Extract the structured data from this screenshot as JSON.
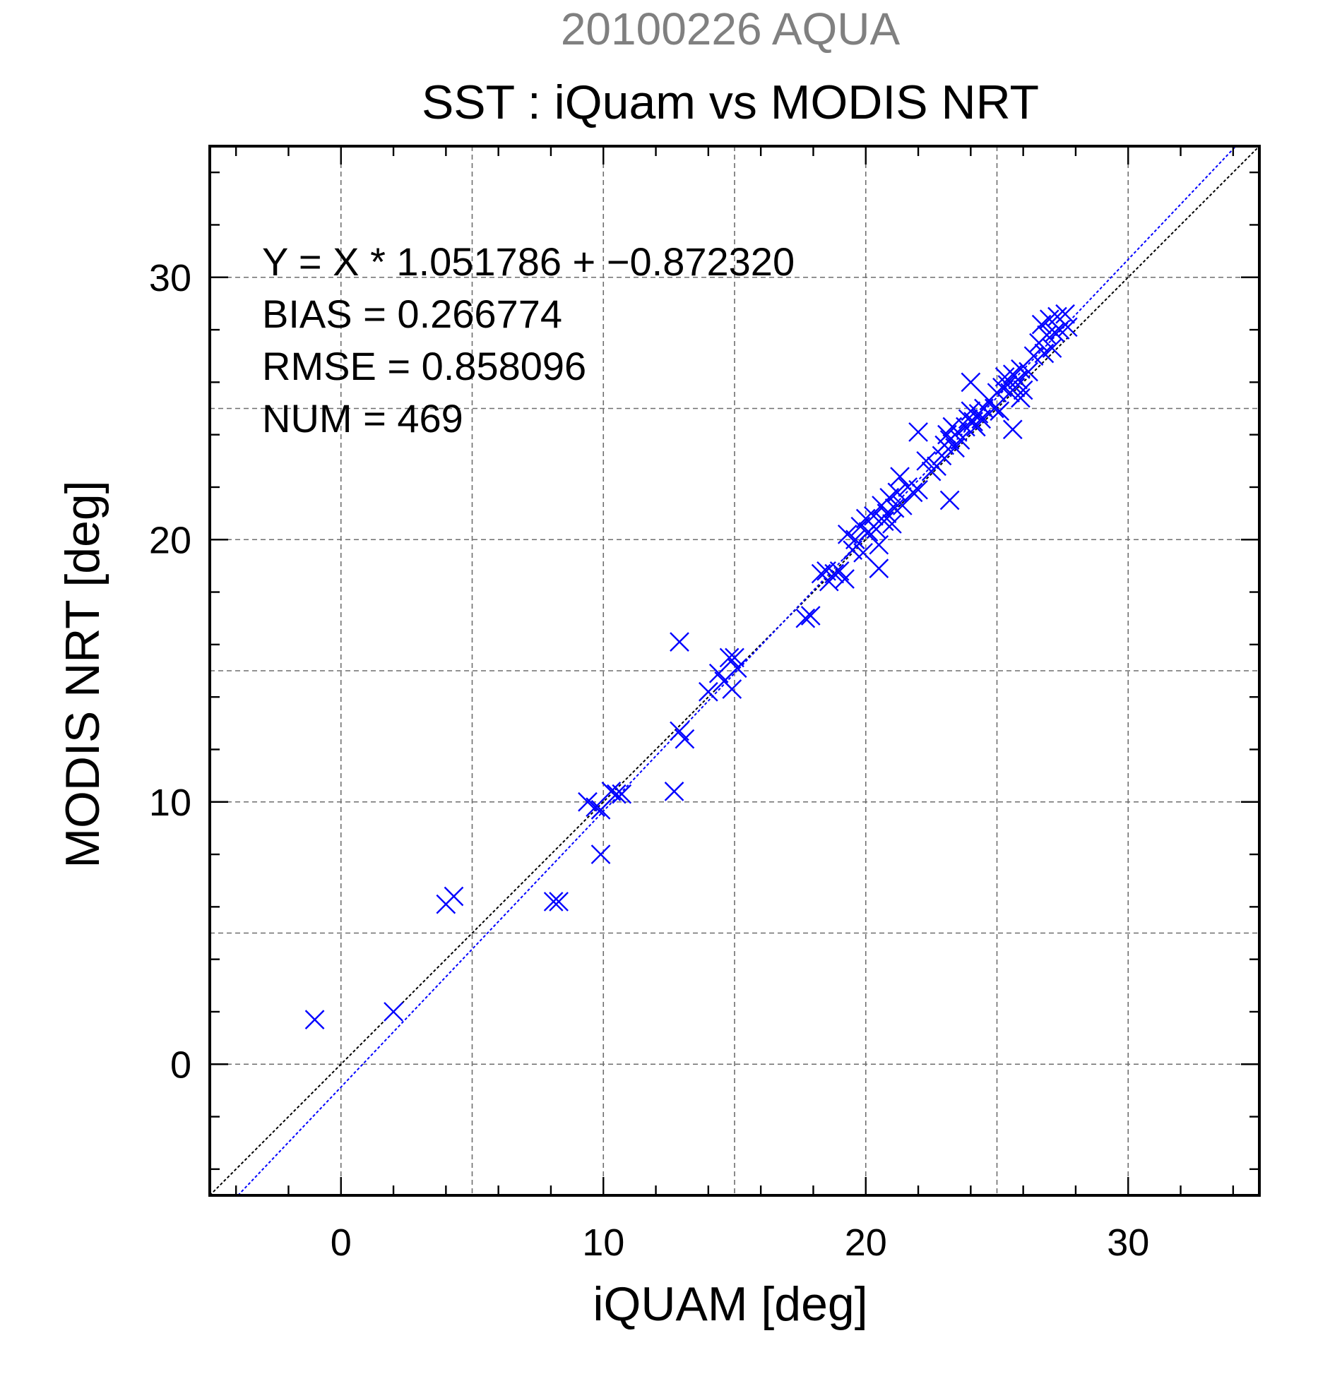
{
  "chart_data": {
    "type": "scatter",
    "subtitle": "20100226 AQUA",
    "title": "SST : iQuam vs MODIS NRT",
    "xlabel": "iQUAM [deg]",
    "ylabel": "MODIS NRT [deg]",
    "xlim": [
      -5,
      35
    ],
    "ylim": [
      -5,
      35
    ],
    "xticks": [
      0,
      10,
      20,
      30
    ],
    "yticks": [
      0,
      10,
      20,
      30
    ],
    "grid": true,
    "annotations": [
      "Y = X * 1.051786 + −0.872320",
      "BIAS = 0.266774",
      "RMSE = 0.858096",
      "NUM = 469"
    ],
    "reference_lines": [
      {
        "kind": "identity",
        "slope": 1,
        "intercept": 0,
        "color": "#000000"
      },
      {
        "kind": "regression",
        "slope": 1.051786,
        "intercept": -0.87232,
        "color": "#0000ff"
      }
    ],
    "series": [
      {
        "color": "#0000ff",
        "marker": "x",
        "points": [
          [
            -1.0,
            1.7
          ],
          [
            2.0,
            2.0
          ],
          [
            4.0,
            6.1
          ],
          [
            4.3,
            6.4
          ],
          [
            8.1,
            6.2
          ],
          [
            8.3,
            6.2
          ],
          [
            9.4,
            10.0
          ],
          [
            9.7,
            9.8
          ],
          [
            9.9,
            9.7
          ],
          [
            9.9,
            8.0
          ],
          [
            10.3,
            10.4
          ],
          [
            10.5,
            10.3
          ],
          [
            10.7,
            10.3
          ],
          [
            12.7,
            10.4
          ],
          [
            12.9,
            12.7
          ],
          [
            13.1,
            12.4
          ],
          [
            12.9,
            16.1
          ],
          [
            14.0,
            14.2
          ],
          [
            14.4,
            14.9
          ],
          [
            14.6,
            14.6
          ],
          [
            14.8,
            15.5
          ],
          [
            14.9,
            14.3
          ],
          [
            15.0,
            15.5
          ],
          [
            15.1,
            15.1
          ],
          [
            17.7,
            17.0
          ],
          [
            17.9,
            17.1
          ],
          [
            18.3,
            18.7
          ],
          [
            18.5,
            18.8
          ],
          [
            18.6,
            18.4
          ],
          [
            18.8,
            18.7
          ],
          [
            19.0,
            18.8
          ],
          [
            19.2,
            18.5
          ],
          [
            19.3,
            20.2
          ],
          [
            19.5,
            19.6
          ],
          [
            19.6,
            20.0
          ],
          [
            19.8,
            20.5
          ],
          [
            19.9,
            19.5
          ],
          [
            20.0,
            20.8
          ],
          [
            20.1,
            20.3
          ],
          [
            20.3,
            20.9
          ],
          [
            20.4,
            20.4
          ],
          [
            20.5,
            19.8
          ],
          [
            20.5,
            18.9
          ],
          [
            20.6,
            21.3
          ],
          [
            20.7,
            20.7
          ],
          [
            20.8,
            21.0
          ],
          [
            20.9,
            21.6
          ],
          [
            21.0,
            20.6
          ],
          [
            21.1,
            21.2
          ],
          [
            21.2,
            21.8
          ],
          [
            21.3,
            22.4
          ],
          [
            21.4,
            21.3
          ],
          [
            21.6,
            22.0
          ],
          [
            21.8,
            21.8
          ],
          [
            22.0,
            21.9
          ],
          [
            22.0,
            24.1
          ],
          [
            22.3,
            23.0
          ],
          [
            22.5,
            22.6
          ],
          [
            22.7,
            22.8
          ],
          [
            22.9,
            23.2
          ],
          [
            23.0,
            23.6
          ],
          [
            23.1,
            24.0
          ],
          [
            23.2,
            21.5
          ],
          [
            23.2,
            23.8
          ],
          [
            23.3,
            24.3
          ],
          [
            23.4,
            23.5
          ],
          [
            23.5,
            24.1
          ],
          [
            23.6,
            23.8
          ],
          [
            23.8,
            24.3
          ],
          [
            23.9,
            24.6
          ],
          [
            24.0,
            24.9
          ],
          [
            24.0,
            26.0
          ],
          [
            24.1,
            24.5
          ],
          [
            24.2,
            24.3
          ],
          [
            24.3,
            24.8
          ],
          [
            24.4,
            24.6
          ],
          [
            24.5,
            25.0
          ],
          [
            24.7,
            25.3
          ],
          [
            24.9,
            25.0
          ],
          [
            25.0,
            25.6
          ],
          [
            25.1,
            24.9
          ],
          [
            25.2,
            25.8
          ],
          [
            25.3,
            26.2
          ],
          [
            25.4,
            25.9
          ],
          [
            25.5,
            25.6
          ],
          [
            25.6,
            24.2
          ],
          [
            25.6,
            26.3
          ],
          [
            25.7,
            25.8
          ],
          [
            25.8,
            26.1
          ],
          [
            25.9,
            25.4
          ],
          [
            25.9,
            26.5
          ],
          [
            26.0,
            25.7
          ],
          [
            26.2,
            26.4
          ],
          [
            26.4,
            27.0
          ],
          [
            26.6,
            27.5
          ],
          [
            26.7,
            28.2
          ],
          [
            26.8,
            27.1
          ],
          [
            26.9,
            27.8
          ],
          [
            27.0,
            28.4
          ],
          [
            27.1,
            27.3
          ],
          [
            27.2,
            27.9
          ],
          [
            27.3,
            28.5
          ],
          [
            27.4,
            28.0
          ],
          [
            27.6,
            28.6
          ],
          [
            27.7,
            28.1
          ]
        ]
      }
    ]
  }
}
